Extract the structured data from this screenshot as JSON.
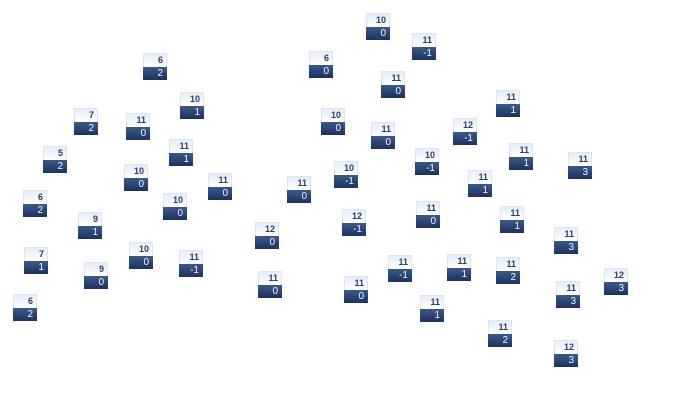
{
  "colors": {
    "header_text": "#2b3f6a",
    "value_bg_top": "#3a5a8c",
    "value_bg_bottom": "#1c3260"
  },
  "nodes": [
    {
      "label": "6",
      "value": "2"
    },
    {
      "label": "10",
      "value": "1"
    },
    {
      "label": "7",
      "value": "2"
    },
    {
      "label": "11",
      "value": "0"
    },
    {
      "label": "11",
      "value": "1"
    },
    {
      "label": "5",
      "value": "2"
    },
    {
      "label": "10",
      "value": "0"
    },
    {
      "label": "11",
      "value": "0"
    },
    {
      "label": "10",
      "value": "0"
    },
    {
      "label": "6",
      "value": "2"
    },
    {
      "label": "9",
      "value": "1"
    },
    {
      "label": "10",
      "value": "0"
    },
    {
      "label": "11",
      "value": "-1"
    },
    {
      "label": "7",
      "value": "1"
    },
    {
      "label": "9",
      "value": "0"
    },
    {
      "label": "6",
      "value": "2"
    },
    {
      "label": "10",
      "value": "0"
    },
    {
      "label": "11",
      "value": "-1"
    },
    {
      "label": "6",
      "value": "0"
    },
    {
      "label": "11",
      "value": "0"
    },
    {
      "label": "10",
      "value": "0"
    },
    {
      "label": "11",
      "value": "0"
    },
    {
      "label": "12",
      "value": "-1"
    },
    {
      "label": "10",
      "value": "-1"
    },
    {
      "label": "10",
      "value": "-1"
    },
    {
      "label": "11",
      "value": "0"
    },
    {
      "label": "12",
      "value": "-1"
    },
    {
      "label": "11",
      "value": "0"
    },
    {
      "label": "12",
      "value": "0"
    },
    {
      "label": "11",
      "value": "-1"
    },
    {
      "label": "11",
      "value": "1"
    },
    {
      "label": "11",
      "value": "0"
    },
    {
      "label": "11",
      "value": "0"
    },
    {
      "label": "11",
      "value": "1"
    },
    {
      "label": "11",
      "value": "1"
    },
    {
      "label": "11",
      "value": "1"
    },
    {
      "label": "11",
      "value": "3"
    },
    {
      "label": "11",
      "value": "1"
    },
    {
      "label": "11",
      "value": "1"
    },
    {
      "label": "11",
      "value": "3"
    },
    {
      "label": "11",
      "value": "2"
    },
    {
      "label": "12",
      "value": "3"
    },
    {
      "label": "11",
      "value": "3"
    },
    {
      "label": "11",
      "value": "2"
    },
    {
      "label": "12",
      "value": "3"
    }
  ]
}
